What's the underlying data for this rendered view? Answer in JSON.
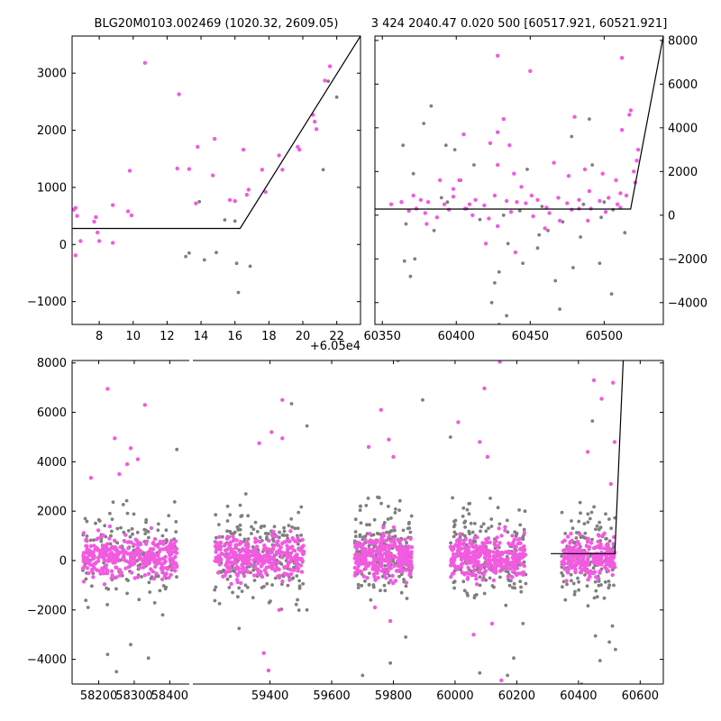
{
  "colors": {
    "primary": "#f25ae0",
    "secondary": "#7f7f7f",
    "model": "#000000"
  },
  "chart_data": [
    {
      "type": "scatter",
      "title": "BLG20M0103.002469 (1020.32, 2609.05)",
      "xlabel": "",
      "ylabel": "",
      "xlim": [
        6.4,
        23.4
      ],
      "ylim": [
        -1400,
        3650
      ],
      "x_offset_text": "+6.05e4",
      "x_ticks": [
        8,
        10,
        12,
        14,
        16,
        18,
        20,
        22
      ],
      "x_tick_labels": [
        "8",
        "10",
        "12",
        "14",
        "16",
        "18",
        "20",
        "22"
      ],
      "y_ticks": [
        -1000,
        0,
        1000,
        2000,
        3000
      ],
      "y_tick_labels": [
        "−1000",
        "0",
        "1000",
        "2000",
        "3000"
      ],
      "y_axis_side": "left",
      "series_primary": [
        [
          6.5,
          610
        ],
        [
          6.6,
          640
        ],
        [
          6.7,
          500
        ],
        [
          6.6,
          -190
        ],
        [
          6.9,
          60
        ],
        [
          7.7,
          400
        ],
        [
          7.8,
          480
        ],
        [
          7.9,
          210
        ],
        [
          8.0,
          60
        ],
        [
          8.8,
          690
        ],
        [
          8.8,
          30
        ],
        [
          9.7,
          580
        ],
        [
          9.8,
          1290
        ],
        [
          9.9,
          510
        ],
        [
          10.7,
          3180
        ],
        [
          12.7,
          2630
        ],
        [
          12.6,
          1330
        ],
        [
          13.3,
          1320
        ],
        [
          13.7,
          720
        ],
        [
          13.8,
          1710
        ],
        [
          14.7,
          1210
        ],
        [
          14.8,
          1850
        ],
        [
          15.7,
          780
        ],
        [
          16.0,
          760
        ],
        [
          16.5,
          1660
        ],
        [
          16.7,
          870
        ],
        [
          16.8,
          960
        ],
        [
          17.6,
          1310
        ],
        [
          17.8,
          920
        ],
        [
          18.6,
          1560
        ],
        [
          18.8,
          1310
        ],
        [
          19.7,
          1710
        ],
        [
          19.8,
          1660
        ],
        [
          20.6,
          2270
        ],
        [
          20.7,
          2150
        ],
        [
          20.8,
          2020
        ],
        [
          21.3,
          2870
        ],
        [
          21.6,
          3120
        ]
      ],
      "series_secondary": [
        [
          13.1,
          -210
        ],
        [
          13.3,
          -150
        ],
        [
          13.9,
          750
        ],
        [
          14.2,
          -270
        ],
        [
          14.9,
          -140
        ],
        [
          15.4,
          430
        ],
        [
          16.0,
          410
        ],
        [
          16.1,
          -330
        ],
        [
          16.2,
          -840
        ],
        [
          16.9,
          -380
        ],
        [
          21.2,
          1310
        ],
        [
          21.5,
          2860
        ],
        [
          22.0,
          2580
        ]
      ],
      "model_line": [
        [
          6.4,
          280
        ],
        [
          16.3,
          280
        ],
        [
          23.4,
          3650
        ]
      ]
    },
    {
      "type": "scatter",
      "title": "3 424 2040.47 0.020 500 [60517.921, 60521.921]",
      "xlabel": "",
      "ylabel": "",
      "xlim": [
        60345,
        60540
      ],
      "ylim": [
        -5000,
        8200
      ],
      "x_ticks": [
        60350,
        60400,
        60450,
        60500
      ],
      "x_tick_labels": [
        "60350",
        "60400",
        "60450",
        "60500"
      ],
      "y_ticks": [
        -4000,
        -2000,
        0,
        2000,
        4000,
        6000,
        8000
      ],
      "y_tick_labels": [
        "−4000",
        "−2000",
        "0",
        "2000",
        "4000",
        "6000",
        "8000"
      ],
      "y_axis_side": "right",
      "series_primary": [
        [
          60428,
          7300
        ],
        [
          60512,
          7200
        ],
        [
          60450,
          6600
        ],
        [
          60518,
          4800
        ],
        [
          60517,
          4600
        ],
        [
          60432,
          4400
        ],
        [
          60480,
          4500
        ],
        [
          60428,
          3800
        ],
        [
          60423,
          3300
        ],
        [
          60512,
          3900
        ],
        [
          60405,
          3700
        ],
        [
          60466,
          2400
        ],
        [
          60436,
          3200
        ],
        [
          60428,
          2300
        ],
        [
          60439,
          1900
        ],
        [
          60487,
          2100
        ],
        [
          60476,
          1800
        ],
        [
          60499,
          1900
        ],
        [
          60508,
          1600
        ],
        [
          60520,
          2000
        ],
        [
          60522,
          2500
        ],
        [
          60523,
          3000
        ],
        [
          60521,
          1500
        ],
        [
          60402,
          1600
        ],
        [
          60389,
          1600
        ],
        [
          60371,
          900
        ],
        [
          60376,
          700
        ],
        [
          60381,
          600
        ],
        [
          60392,
          500
        ],
        [
          60398,
          850
        ],
        [
          60406,
          300
        ],
        [
          60413,
          700
        ],
        [
          60419,
          450
        ],
        [
          60426,
          900
        ],
        [
          60434,
          650
        ],
        [
          60441,
          600
        ],
        [
          60447,
          550
        ],
        [
          60455,
          700
        ],
        [
          60461,
          350
        ],
        [
          60469,
          800
        ],
        [
          60475,
          550
        ],
        [
          60483,
          700
        ],
        [
          60491,
          300
        ],
        [
          60497,
          650
        ],
        [
          60503,
          800
        ],
        [
          60509,
          500
        ],
        [
          60515,
          900
        ],
        [
          60368,
          200
        ],
        [
          60379,
          100
        ],
        [
          60387,
          -100
        ],
        [
          60395,
          250
        ],
        [
          60411,
          0
        ],
        [
          60422,
          -150
        ],
        [
          60437,
          150
        ],
        [
          60452,
          -50
        ],
        [
          60463,
          100
        ],
        [
          60478,
          250
        ],
        [
          60489,
          -250
        ],
        [
          60501,
          150
        ],
        [
          60511,
          350
        ],
        [
          60428,
          -500
        ],
        [
          60440,
          -1700
        ],
        [
          60420,
          -1300
        ],
        [
          60470,
          -250
        ],
        [
          60380,
          -400
        ],
        [
          60460,
          -600
        ],
        [
          60398,
          1200
        ],
        [
          60444,
          1300
        ],
        [
          60490,
          1100
        ],
        [
          60511,
          1000
        ],
        [
          60356,
          500
        ],
        [
          60363,
          600
        ],
        [
          60373,
          300
        ],
        [
          60409,
          500
        ],
        [
          60451,
          900
        ],
        [
          60483,
          300
        ]
      ],
      "series_secondary": [
        [
          60378,
          4200
        ],
        [
          60383,
          5000
        ],
        [
          60364,
          3200
        ],
        [
          60371,
          1900
        ],
        [
          60365,
          -2100
        ],
        [
          60369,
          -2800
        ],
        [
          60372,
          -2000
        ],
        [
          60393,
          3200
        ],
        [
          60399,
          3000
        ],
        [
          60426,
          -3100
        ],
        [
          60429,
          -5000
        ],
        [
          60424,
          -4000
        ],
        [
          60434,
          -4600
        ],
        [
          60429,
          -2600
        ],
        [
          60445,
          -2200
        ],
        [
          60467,
          -3000
        ],
        [
          60470,
          -4300
        ],
        [
          60455,
          -1500
        ],
        [
          60462,
          -700
        ],
        [
          60479,
          -2400
        ],
        [
          60497,
          -2200
        ],
        [
          60505,
          -3600
        ],
        [
          60490,
          4400
        ],
        [
          60478,
          3600
        ],
        [
          60492,
          2300
        ],
        [
          60448,
          2100
        ],
        [
          60412,
          2300
        ],
        [
          60403,
          1600
        ],
        [
          60390,
          800
        ],
        [
          60394,
          600
        ],
        [
          60407,
          300
        ],
        [
          60416,
          -200
        ],
        [
          60432,
          0
        ],
        [
          60443,
          200
        ],
        [
          60458,
          400
        ],
        [
          60472,
          -300
        ],
        [
          60486,
          500
        ],
        [
          60498,
          -100
        ],
        [
          60506,
          250
        ],
        [
          60366,
          -400
        ],
        [
          60385,
          -700
        ],
        [
          60435,
          -1300
        ],
        [
          60456,
          -900
        ],
        [
          60484,
          -1000
        ],
        [
          60500,
          600
        ],
        [
          60514,
          -800
        ]
      ],
      "model_line": [
        [
          60345,
          280
        ],
        [
          60517.9,
          280
        ],
        [
          60540,
          8200
        ]
      ]
    },
    {
      "type": "scatter",
      "title": "",
      "xlabel": "",
      "ylabel": "",
      "x_segments": [
        {
          "xlim": [
            58125,
            58455
          ],
          "x_ticks": [
            58200,
            58300,
            58400
          ],
          "x_tick_labels": [
            "58200",
            "58300",
            "58400"
          ]
        },
        {
          "xlim": [
            59150,
            60675
          ],
          "x_ticks": [
            59400,
            59600,
            59800,
            60000,
            60200,
            60400,
            60600
          ],
          "x_tick_labels": [
            "59400",
            "59600",
            "59800",
            "60000",
            "60200",
            "60400",
            "60600"
          ]
        }
      ],
      "ylim": [
        -5000,
        8100
      ],
      "y_ticks": [
        -4000,
        -2000,
        0,
        2000,
        4000,
        6000,
        8000
      ],
      "y_tick_labels": [
        "−4000",
        "−2000",
        "0",
        "2000",
        "4000",
        "6000",
        "8000"
      ],
      "y_axis_side": "left",
      "clusters": [
        {
          "x_range": [
            58155,
            58420
          ],
          "n_primary": 330,
          "n_secondary": 160
        },
        {
          "x_range": [
            59220,
            59510
          ],
          "n_primary": 330,
          "n_secondary": 230
        },
        {
          "x_range": [
            59675,
            59860
          ],
          "n_primary": 300,
          "n_secondary": 190
        },
        {
          "x_range": [
            59985,
            60230
          ],
          "n_primary": 320,
          "n_secondary": 190
        },
        {
          "x_range": [
            60345,
            60520
          ],
          "n_primary": 240,
          "n_secondary": 130
        }
      ],
      "outliers_primary": [
        [
          58225,
          6950
        ],
        [
          58330,
          6300
        ],
        [
          58245,
          4950
        ],
        [
          58290,
          4550
        ],
        [
          58178,
          3350
        ],
        [
          58280,
          3900
        ],
        [
          58258,
          3500
        ],
        [
          58310,
          4100
        ],
        [
          59405,
          5200
        ],
        [
          59365,
          4750
        ],
        [
          59440,
          6500
        ],
        [
          59440,
          4950
        ],
        [
          59380,
          -3750
        ],
        [
          59395,
          -4450
        ],
        [
          59430,
          -2000
        ],
        [
          59760,
          6100
        ],
        [
          59785,
          4900
        ],
        [
          59800,
          4200
        ],
        [
          59720,
          4600
        ],
        [
          59790,
          -2450
        ],
        [
          59740,
          -1900
        ],
        [
          60010,
          5600
        ],
        [
          60095,
          6970
        ],
        [
          60145,
          8050
        ],
        [
          60080,
          4800
        ],
        [
          60105,
          4200
        ],
        [
          60060,
          -3000
        ],
        [
          60150,
          -4850
        ],
        [
          60120,
          -2550
        ],
        [
          60450,
          7300
        ],
        [
          60475,
          6550
        ],
        [
          60512,
          7200
        ],
        [
          60517,
          4800
        ],
        [
          60430,
          4400
        ],
        [
          60505,
          3100
        ]
      ],
      "outliers_secondary": [
        [
          58170,
          -1900
        ],
        [
          58225,
          -3800
        ],
        [
          58250,
          -4500
        ],
        [
          58290,
          -3400
        ],
        [
          58340,
          -3950
        ],
        [
          58380,
          -2200
        ],
        [
          58420,
          4500
        ],
        [
          59300,
          -2750
        ],
        [
          59520,
          -2000
        ],
        [
          59520,
          5450
        ],
        [
          59470,
          6350
        ],
        [
          59700,
          -4650
        ],
        [
          59790,
          -4150
        ],
        [
          59815,
          8100
        ],
        [
          59895,
          6500
        ],
        [
          59840,
          -3100
        ],
        [
          59985,
          5000
        ],
        [
          60080,
          -4550
        ],
        [
          60170,
          -4650
        ],
        [
          60190,
          -3950
        ],
        [
          60220,
          -2550
        ],
        [
          60410,
          -5000
        ],
        [
          60470,
          -4050
        ],
        [
          60500,
          -3300
        ],
        [
          60520,
          -3600
        ],
        [
          60510,
          -2650
        ],
        [
          60445,
          5650
        ],
        [
          60455,
          -3050
        ]
      ],
      "model_line": [
        [
          60310,
          280
        ],
        [
          60517.9,
          280
        ],
        [
          60545,
          8100
        ]
      ]
    }
  ]
}
